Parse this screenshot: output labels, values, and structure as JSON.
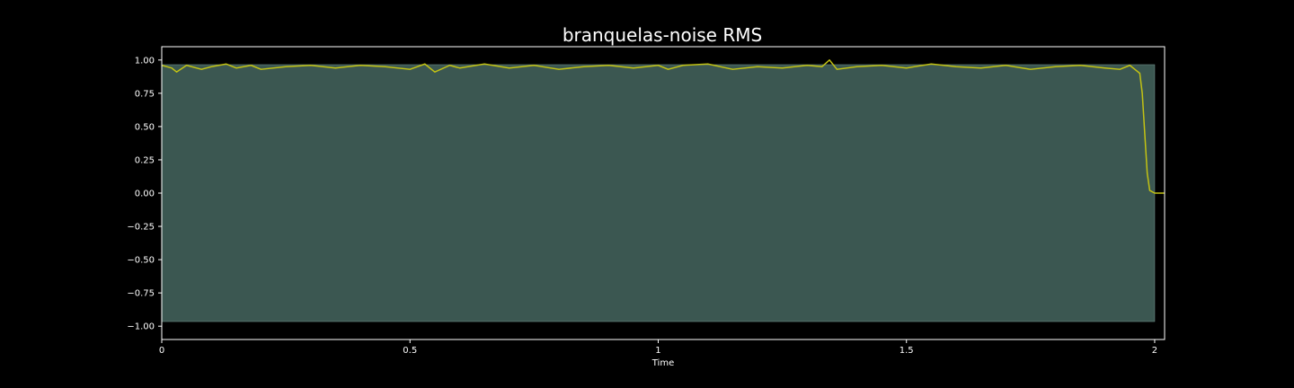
{
  "chart_data": {
    "type": "area",
    "title": "branquelas-noise RMS",
    "xlabel": "Time",
    "ylabel": "",
    "xlim": [
      0,
      2.02
    ],
    "ylim": [
      -1.1,
      1.1
    ],
    "grid": false,
    "x_ticks": [
      {
        "value": 0,
        "label": "0"
      },
      {
        "value": 0.5,
        "label": "0.5"
      },
      {
        "value": 1,
        "label": "1"
      },
      {
        "value": 1.5,
        "label": "1.5"
      },
      {
        "value": 2,
        "label": "2"
      }
    ],
    "y_ticks": [
      {
        "value": 1.0,
        "label": "1.00"
      },
      {
        "value": 0.75,
        "label": "0.75"
      },
      {
        "value": 0.5,
        "label": "0.50"
      },
      {
        "value": 0.25,
        "label": "0.25"
      },
      {
        "value": 0.0,
        "label": "0.00"
      },
      {
        "value": -0.25,
        "label": "−0.25"
      },
      {
        "value": -0.5,
        "label": "−0.50"
      },
      {
        "value": -0.75,
        "label": "−0.75"
      },
      {
        "value": -1.0,
        "label": "−1.00"
      }
    ],
    "series": [
      {
        "name": "waveform",
        "kind": "filled-band",
        "color": "#3b5751",
        "x_start": 0,
        "x_end": 2.0,
        "upper": 0.965,
        "lower": -0.965
      },
      {
        "name": "rms",
        "kind": "line",
        "color": "#c2c214",
        "x": [
          0,
          0.02,
          0.03,
          0.05,
          0.08,
          0.1,
          0.13,
          0.15,
          0.18,
          0.2,
          0.25,
          0.3,
          0.35,
          0.4,
          0.45,
          0.5,
          0.53,
          0.55,
          0.58,
          0.6,
          0.65,
          0.7,
          0.75,
          0.8,
          0.85,
          0.9,
          0.95,
          1.0,
          1.02,
          1.05,
          1.1,
          1.15,
          1.2,
          1.25,
          1.3,
          1.33,
          1.345,
          1.36,
          1.4,
          1.45,
          1.5,
          1.55,
          1.6,
          1.65,
          1.7,
          1.75,
          1.8,
          1.85,
          1.9,
          1.93,
          1.95,
          1.96,
          1.97,
          1.975,
          1.98,
          1.985,
          1.99,
          2.0,
          2.02
        ],
        "y": [
          0.96,
          0.94,
          0.91,
          0.96,
          0.93,
          0.95,
          0.97,
          0.94,
          0.96,
          0.93,
          0.95,
          0.96,
          0.94,
          0.96,
          0.95,
          0.93,
          0.97,
          0.91,
          0.96,
          0.94,
          0.97,
          0.94,
          0.96,
          0.93,
          0.95,
          0.96,
          0.94,
          0.96,
          0.93,
          0.96,
          0.97,
          0.93,
          0.95,
          0.94,
          0.96,
          0.95,
          1.0,
          0.93,
          0.95,
          0.96,
          0.94,
          0.97,
          0.95,
          0.94,
          0.96,
          0.93,
          0.95,
          0.96,
          0.94,
          0.93,
          0.96,
          0.93,
          0.9,
          0.75,
          0.45,
          0.15,
          0.02,
          0.0,
          0.0
        ]
      }
    ]
  }
}
